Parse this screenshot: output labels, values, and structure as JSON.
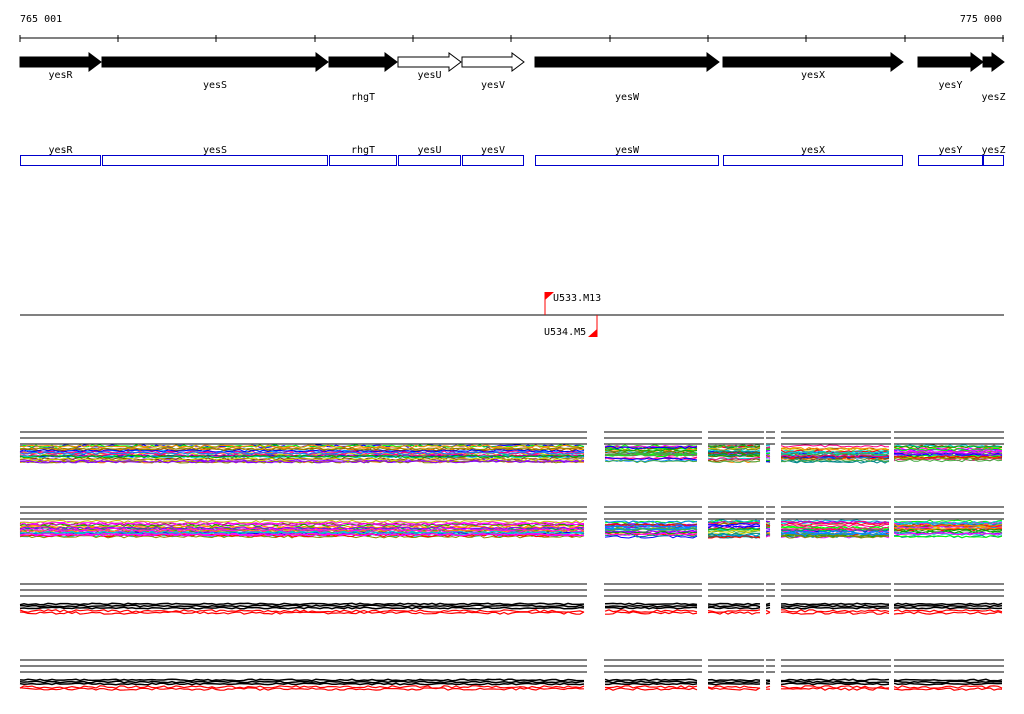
{
  "coords": {
    "start_label": "765 001",
    "end_label": "775 000"
  },
  "genes": [
    {
      "name": "yesR",
      "strand": "+",
      "filled": true
    },
    {
      "name": "yesS",
      "strand": "+",
      "filled": true
    },
    {
      "name": "rhgT",
      "strand": "+",
      "filled": true
    },
    {
      "name": "yesU",
      "strand": "+",
      "filled": false
    },
    {
      "name": "yesV",
      "strand": "+",
      "filled": false
    },
    {
      "name": "yesW",
      "strand": "+",
      "filled": true
    },
    {
      "name": "yesX",
      "strand": "+",
      "filled": true
    },
    {
      "name": "yesY",
      "strand": "+",
      "filled": true
    },
    {
      "name": "yesZ",
      "strand": "+",
      "filled": true
    }
  ],
  "features": [
    {
      "name": "U533.M13",
      "strand": "+"
    },
    {
      "name": "U534.M5",
      "strand": "-"
    }
  ],
  "colors": {
    "gene_fill": "#000000",
    "gene_outline": "#000000",
    "box_outline": "#0000cc",
    "marker": "#ff0000",
    "profile_dark": "#000000",
    "profile_red": "#ff0000"
  }
}
